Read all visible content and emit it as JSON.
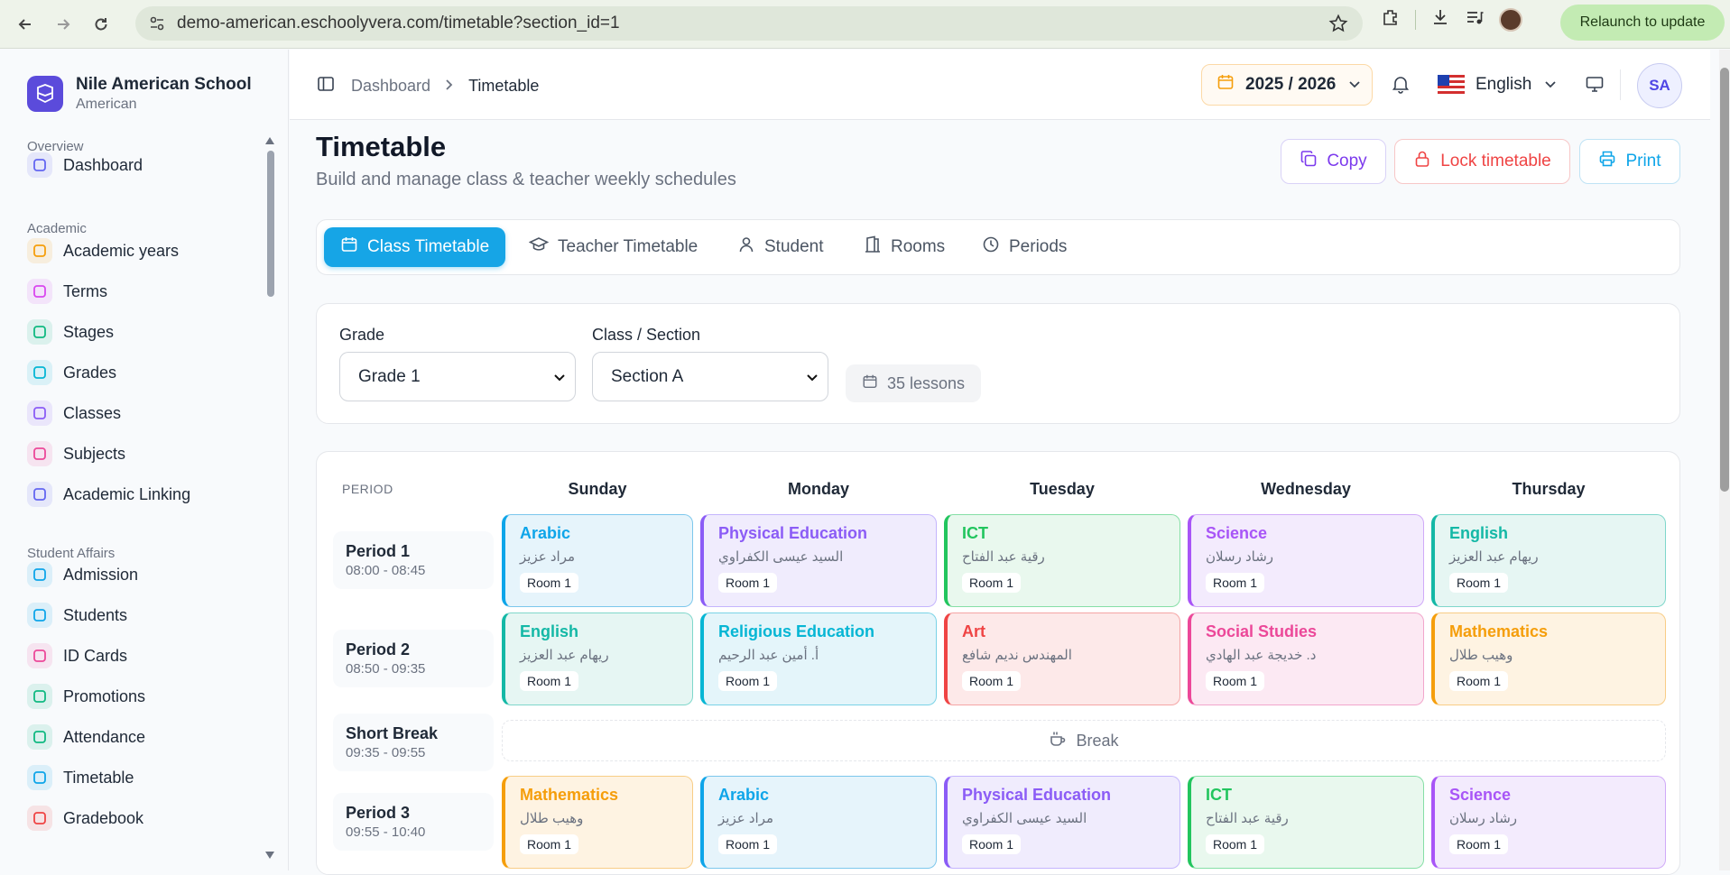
{
  "browser": {
    "url": "demo-american.eschoolyvera.com/timetable?section_id=1",
    "relaunch_label": "Relaunch to update"
  },
  "brand": {
    "name": "Nile American School",
    "subtitle": "American"
  },
  "sidebar": {
    "sections": [
      {
        "label": "Overview"
      },
      {
        "label": "Academic"
      },
      {
        "label": "Student Affairs"
      }
    ],
    "items": [
      {
        "label": "Dashboard",
        "icon": "grid-icon",
        "color": "#6366f1"
      },
      {
        "label": "Academic years",
        "icon": "calendar-icon",
        "color": "#f59e0b"
      },
      {
        "label": "Terms",
        "icon": "calendar-clock-icon",
        "color": "#d946ef"
      },
      {
        "label": "Stages",
        "icon": "layers-icon",
        "color": "#10b981"
      },
      {
        "label": "Grades",
        "icon": "graduation-cap-icon",
        "color": "#06b6d4"
      },
      {
        "label": "Classes",
        "icon": "building-icon",
        "color": "#8b5cf6"
      },
      {
        "label": "Subjects",
        "icon": "library-icon",
        "color": "#ec4899"
      },
      {
        "label": "Academic Linking",
        "icon": "link-icon",
        "color": "#6366f1"
      },
      {
        "label": "Admission",
        "icon": "user-plus-icon",
        "color": "#0ea5e9"
      },
      {
        "label": "Students",
        "icon": "graduation-cap-icon",
        "color": "#0ea5e9"
      },
      {
        "label": "ID Cards",
        "icon": "id-card-icon",
        "color": "#ec4899"
      },
      {
        "label": "Promotions",
        "icon": "arrow-up-circle-icon",
        "color": "#10b981"
      },
      {
        "label": "Attendance",
        "icon": "calendar-check-icon",
        "color": "#10b981"
      },
      {
        "label": "Timetable",
        "icon": "calendar-icon",
        "color": "#0ea5e9"
      },
      {
        "label": "Gradebook",
        "icon": "clipboard-icon",
        "color": "#ef4444"
      }
    ]
  },
  "topbar": {
    "breadcrumb": [
      "Dashboard",
      "Timetable"
    ],
    "year": "2025 / 2026",
    "language": "English",
    "avatar": "SA"
  },
  "page": {
    "title": "Timetable",
    "subtitle": "Build and manage class & teacher weekly schedules",
    "actions": {
      "copy": "Copy",
      "lock": "Lock timetable",
      "print": "Print"
    }
  },
  "tabs": [
    "Class Timetable",
    "Teacher Timetable",
    "Student",
    "Rooms",
    "Periods"
  ],
  "filters": {
    "grade_label": "Grade",
    "grade_value": "Grade 1",
    "section_label": "Class / Section",
    "section_value": "Section A",
    "lessons_count": "35 lessons"
  },
  "timetable": {
    "period_header": "PERIOD",
    "days": [
      "Sunday",
      "Monday",
      "Tuesday",
      "Wednesday",
      "Thursday"
    ],
    "break_label": "Break",
    "rows": [
      {
        "name": "Period 1",
        "time": "08:00 - 08:45",
        "lessons": [
          {
            "subject": "Arabic",
            "teacher": "مراد عزيز",
            "room": "Room 1",
            "color": "#0ea5e9",
            "bg": "#e6f4fb",
            "border": "#7cc7ec"
          },
          {
            "subject": "Physical Education",
            "teacher": "السيد عيسى الكفراوي",
            "room": "Room 1",
            "color": "#8b5cf6",
            "bg": "#f0ecfd",
            "border": "#c4b5fd"
          },
          {
            "subject": "ICT",
            "teacher": "رقية عبد الفتاح",
            "room": "Room 1",
            "color": "#22c55e",
            "bg": "#e9f8ee",
            "border": "#86dfa6"
          },
          {
            "subject": "Science",
            "teacher": "رشاد رسلان",
            "room": "Room 1",
            "color": "#a855f7",
            "bg": "#f3ebfd",
            "border": "#d0aaf8"
          },
          {
            "subject": "English",
            "teacher": "ريهام عبد العزيز",
            "room": "Room 1",
            "color": "#14b8a6",
            "bg": "#e6f6f3",
            "border": "#7fd7cb"
          }
        ]
      },
      {
        "name": "Period 2",
        "time": "08:50 - 09:35",
        "lessons": [
          {
            "subject": "English",
            "teacher": "ريهام عبد العزيز",
            "room": "Room 1",
            "color": "#14b8a6",
            "bg": "#e6f6f3",
            "border": "#7fd7cb"
          },
          {
            "subject": "Religious Education",
            "teacher": "أ. أمين عبد الرحيم",
            "room": "Room 1",
            "color": "#06b6d4",
            "bg": "#e4f5fa",
            "border": "#7ad3e6"
          },
          {
            "subject": "Art",
            "teacher": "المهندس نديم شافع",
            "room": "Room 1",
            "color": "#ef4444",
            "bg": "#fde9e9",
            "border": "#f5a5a5"
          },
          {
            "subject": "Social Studies",
            "teacher": "د. خديجة عبد الهادي",
            "room": "Room 1",
            "color": "#ec4899",
            "bg": "#fce9f3",
            "border": "#f2a6cc"
          },
          {
            "subject": "Mathematics",
            "teacher": "وهيب طلال",
            "room": "Room 1",
            "color": "#f59e0b",
            "bg": "#fef3e2",
            "border": "#f8cd86"
          }
        ]
      },
      {
        "name": "Short Break",
        "time": "09:35 - 09:55",
        "is_break": true
      },
      {
        "name": "Period 3",
        "time": "09:55 - 10:40",
        "lessons": [
          {
            "subject": "Mathematics",
            "teacher": "وهيب طلال",
            "room": "Room 1",
            "color": "#f59e0b",
            "bg": "#fef3e2",
            "border": "#f8cd86"
          },
          {
            "subject": "Arabic",
            "teacher": "مراد عزيز",
            "room": "Room 1",
            "color": "#0ea5e9",
            "bg": "#e6f4fb",
            "border": "#7cc7ec"
          },
          {
            "subject": "Physical Education",
            "teacher": "السيد عيسى الكفراوي",
            "room": "Room 1",
            "color": "#8b5cf6",
            "bg": "#f0ecfd",
            "border": "#c4b5fd"
          },
          {
            "subject": "ICT",
            "teacher": "رقية عبد الفتاح",
            "room": "Room 1",
            "color": "#22c55e",
            "bg": "#e9f8ee",
            "border": "#86dfa6"
          },
          {
            "subject": "Science",
            "teacher": "رشاد رسلان",
            "room": "Room 1",
            "color": "#a855f7",
            "bg": "#f3ebfd",
            "border": "#d0aaf8"
          }
        ]
      }
    ]
  }
}
